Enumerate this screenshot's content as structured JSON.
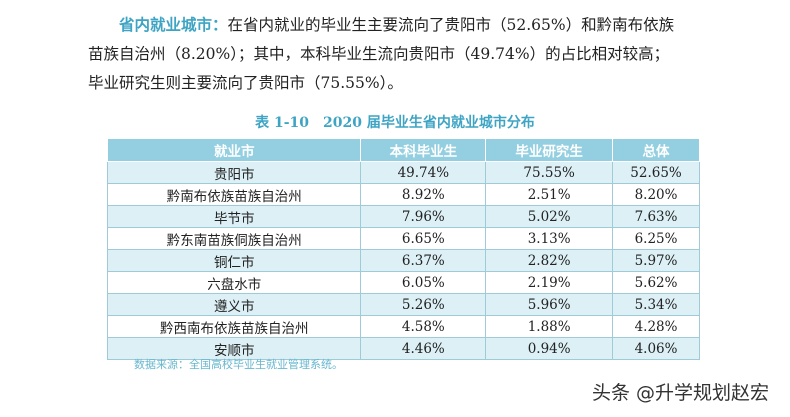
{
  "paragraph": {
    "highlight": "省内就业城市：",
    "line1": "在省内就业的毕业生主要流向了贵阳市（52.65%）和黔南布依族",
    "line2": "苗族自治州（8.20%）；其中，本科毕业生流向贵阳市（49.74%）的占比相对较高；",
    "line3": "毕业研究生则主要流向了贵阳市（75.55%）。"
  },
  "table": {
    "caption": "表 1-10　2020 届毕业生省内就业城市分布",
    "headers": [
      "就业市",
      "本科毕业生",
      "毕业研究生",
      "总体"
    ],
    "rows": [
      [
        "贵阳市",
        "49.74%",
        "75.55%",
        "52.65%"
      ],
      [
        "黔南布依族苗族自治州",
        "8.92%",
        "2.51%",
        "8.20%"
      ],
      [
        "毕节市",
        "7.96%",
        "5.02%",
        "7.63%"
      ],
      [
        "黔东南苗族侗族自治州",
        "6.65%",
        "3.13%",
        "6.25%"
      ],
      [
        "铜仁市",
        "6.37%",
        "2.82%",
        "5.97%"
      ],
      [
        "六盘水市",
        "6.05%",
        "2.19%",
        "5.62%"
      ],
      [
        "遵义市",
        "5.26%",
        "5.96%",
        "5.34%"
      ],
      [
        "黔西南布依族苗族自治州",
        "4.58%",
        "1.88%",
        "4.28%"
      ],
      [
        "安顺市",
        "4.46%",
        "0.94%",
        "4.06%"
      ]
    ],
    "source": "数据来源：全国高校毕业生就业管理系统。"
  },
  "watermark": "头条 @升学规划赵宏",
  "colors": {
    "accent": "#3ea4c4",
    "header_bg": "#93cfe0",
    "row_alt": "#dcf0f6"
  }
}
